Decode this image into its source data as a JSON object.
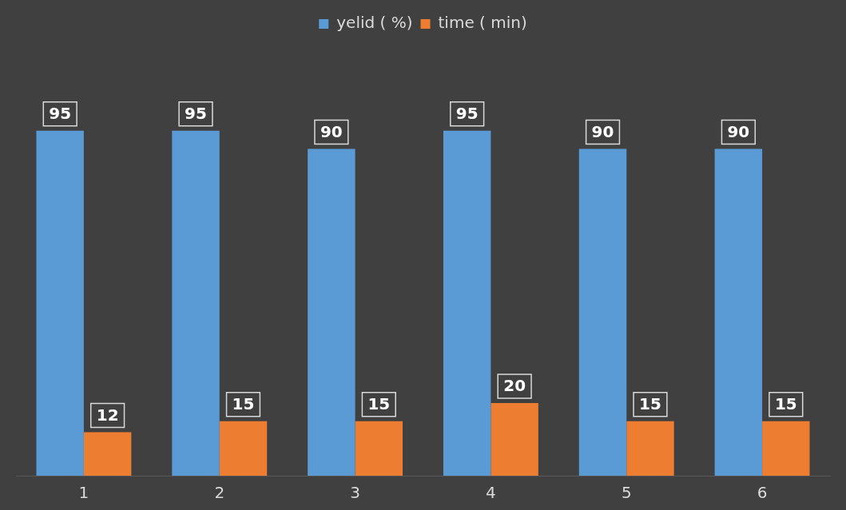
{
  "chart_data": {
    "type": "bar",
    "categories": [
      "1",
      "2",
      "3",
      "4",
      "5",
      "6"
    ],
    "series": [
      {
        "name": "yelid ( %)",
        "color": "#5b9bd5",
        "values": [
          95,
          95,
          90,
          95,
          90,
          90
        ]
      },
      {
        "name": "time ( min)",
        "color": "#ed7d31",
        "values": [
          12,
          15,
          15,
          20,
          15,
          15
        ]
      }
    ],
    "data_labels": true,
    "legend": "top",
    "grid": false,
    "tick_labels": "x"
  }
}
